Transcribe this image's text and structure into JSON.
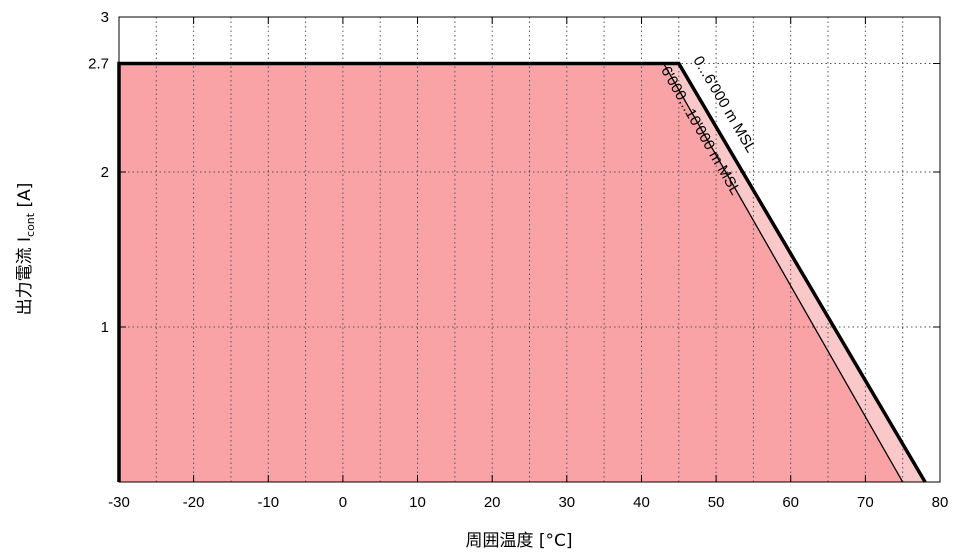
{
  "chart_data": {
    "type": "area",
    "xlabel": "周囲温度 [°C]",
    "ylabel": {
      "prefix": "出力電流 I",
      "sub": "cont",
      "suffix": " [A]"
    },
    "xlim": [
      -30,
      80
    ],
    "ylim": [
      0,
      3
    ],
    "x_ticks": [
      -30,
      -20,
      -10,
      0,
      10,
      20,
      30,
      40,
      50,
      60,
      70,
      80
    ],
    "y_ticks": [
      {
        "value": 1,
        "label": "1"
      },
      {
        "value": 2,
        "label": "2"
      },
      {
        "value": 2.7,
        "label": "2.7"
      },
      {
        "value": 3,
        "label": "3"
      }
    ],
    "grid": true,
    "grid_style": "dotted",
    "x_grid_step": 5,
    "series": [
      {
        "name": "0...6'000 m MSL",
        "x": [
          -30,
          -30,
          45,
          78
        ],
        "y": [
          0,
          2.7,
          2.7,
          0
        ],
        "fill": "#fbc8c9",
        "stroke": "#000000",
        "stroke_style": "thick"
      },
      {
        "name": "6'000...10'000 m MSL",
        "x": [
          -30,
          -30,
          43,
          75
        ],
        "y": [
          0,
          2.7,
          2.7,
          0
        ],
        "fill": "#f9a3a6",
        "stroke": "#000000",
        "stroke_style": "thin"
      }
    ]
  }
}
